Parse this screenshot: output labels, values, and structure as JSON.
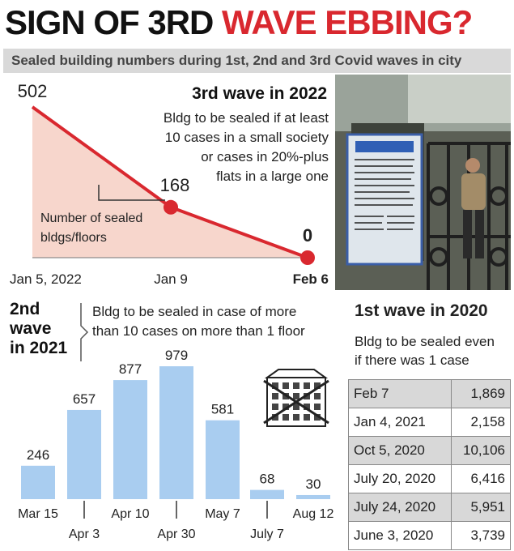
{
  "headline": {
    "part1": "SIGN OF 3RD ",
    "part2": "WAVE EBBING?"
  },
  "subtitle": "Sealed building numbers during 1st, 2nd and 3rd Covid waves in city",
  "colors": {
    "red": "#d9282f",
    "bar_blue": "#a9cdf0",
    "area_pink": "#f7d6cc",
    "grey_band": "#d9d9d9"
  },
  "chart_data": [
    {
      "type": "area",
      "title": "3rd wave in 2022",
      "note": [
        "Bldg to be sealed if at least",
        "10 cases in a small society",
        "or cases in 20%-plus",
        "flats in a large one"
      ],
      "annotation": [
        "Number of sealed",
        "bldgs/floors"
      ],
      "categories": [
        "Jan 5, 2022",
        "Jan 9",
        "Feb 6"
      ],
      "values": [
        502,
        168,
        0
      ],
      "value_labels": [
        "502",
        "168",
        "0"
      ],
      "ylim": [
        0,
        520
      ]
    },
    {
      "type": "bar",
      "title": [
        "2nd",
        "wave",
        "in 2021"
      ],
      "note": [
        "Bldg to be sealed in case of more",
        "than 10 cases on more than 1 floor"
      ],
      "categories": [
        "Mar 15",
        "Apr 3",
        "Apr 10",
        "Apr 30",
        "May 7",
        "July 7",
        "Aug 12"
      ],
      "values": [
        246,
        657,
        877,
        979,
        581,
        68,
        30
      ],
      "value_labels": [
        "246",
        "657",
        "877",
        "979",
        "581",
        "68",
        "30"
      ],
      "ylim": [
        0,
        1000
      ]
    },
    {
      "type": "table",
      "title": "1st wave in 2020",
      "note": [
        "Bldg to be sealed even",
        "if there was 1 case"
      ],
      "rows": [
        {
          "date": "Feb 7",
          "value": "1,869"
        },
        {
          "date": "Jan 4, 2021",
          "value": "2,158"
        },
        {
          "date": "Oct 5, 2020",
          "value": "10,106"
        },
        {
          "date": "July 20, 2020",
          "value": "6,416"
        },
        {
          "date": "July 24, 2020",
          "value": "5,951"
        },
        {
          "date": "June 3, 2020",
          "value": "3,739"
        }
      ]
    }
  ]
}
